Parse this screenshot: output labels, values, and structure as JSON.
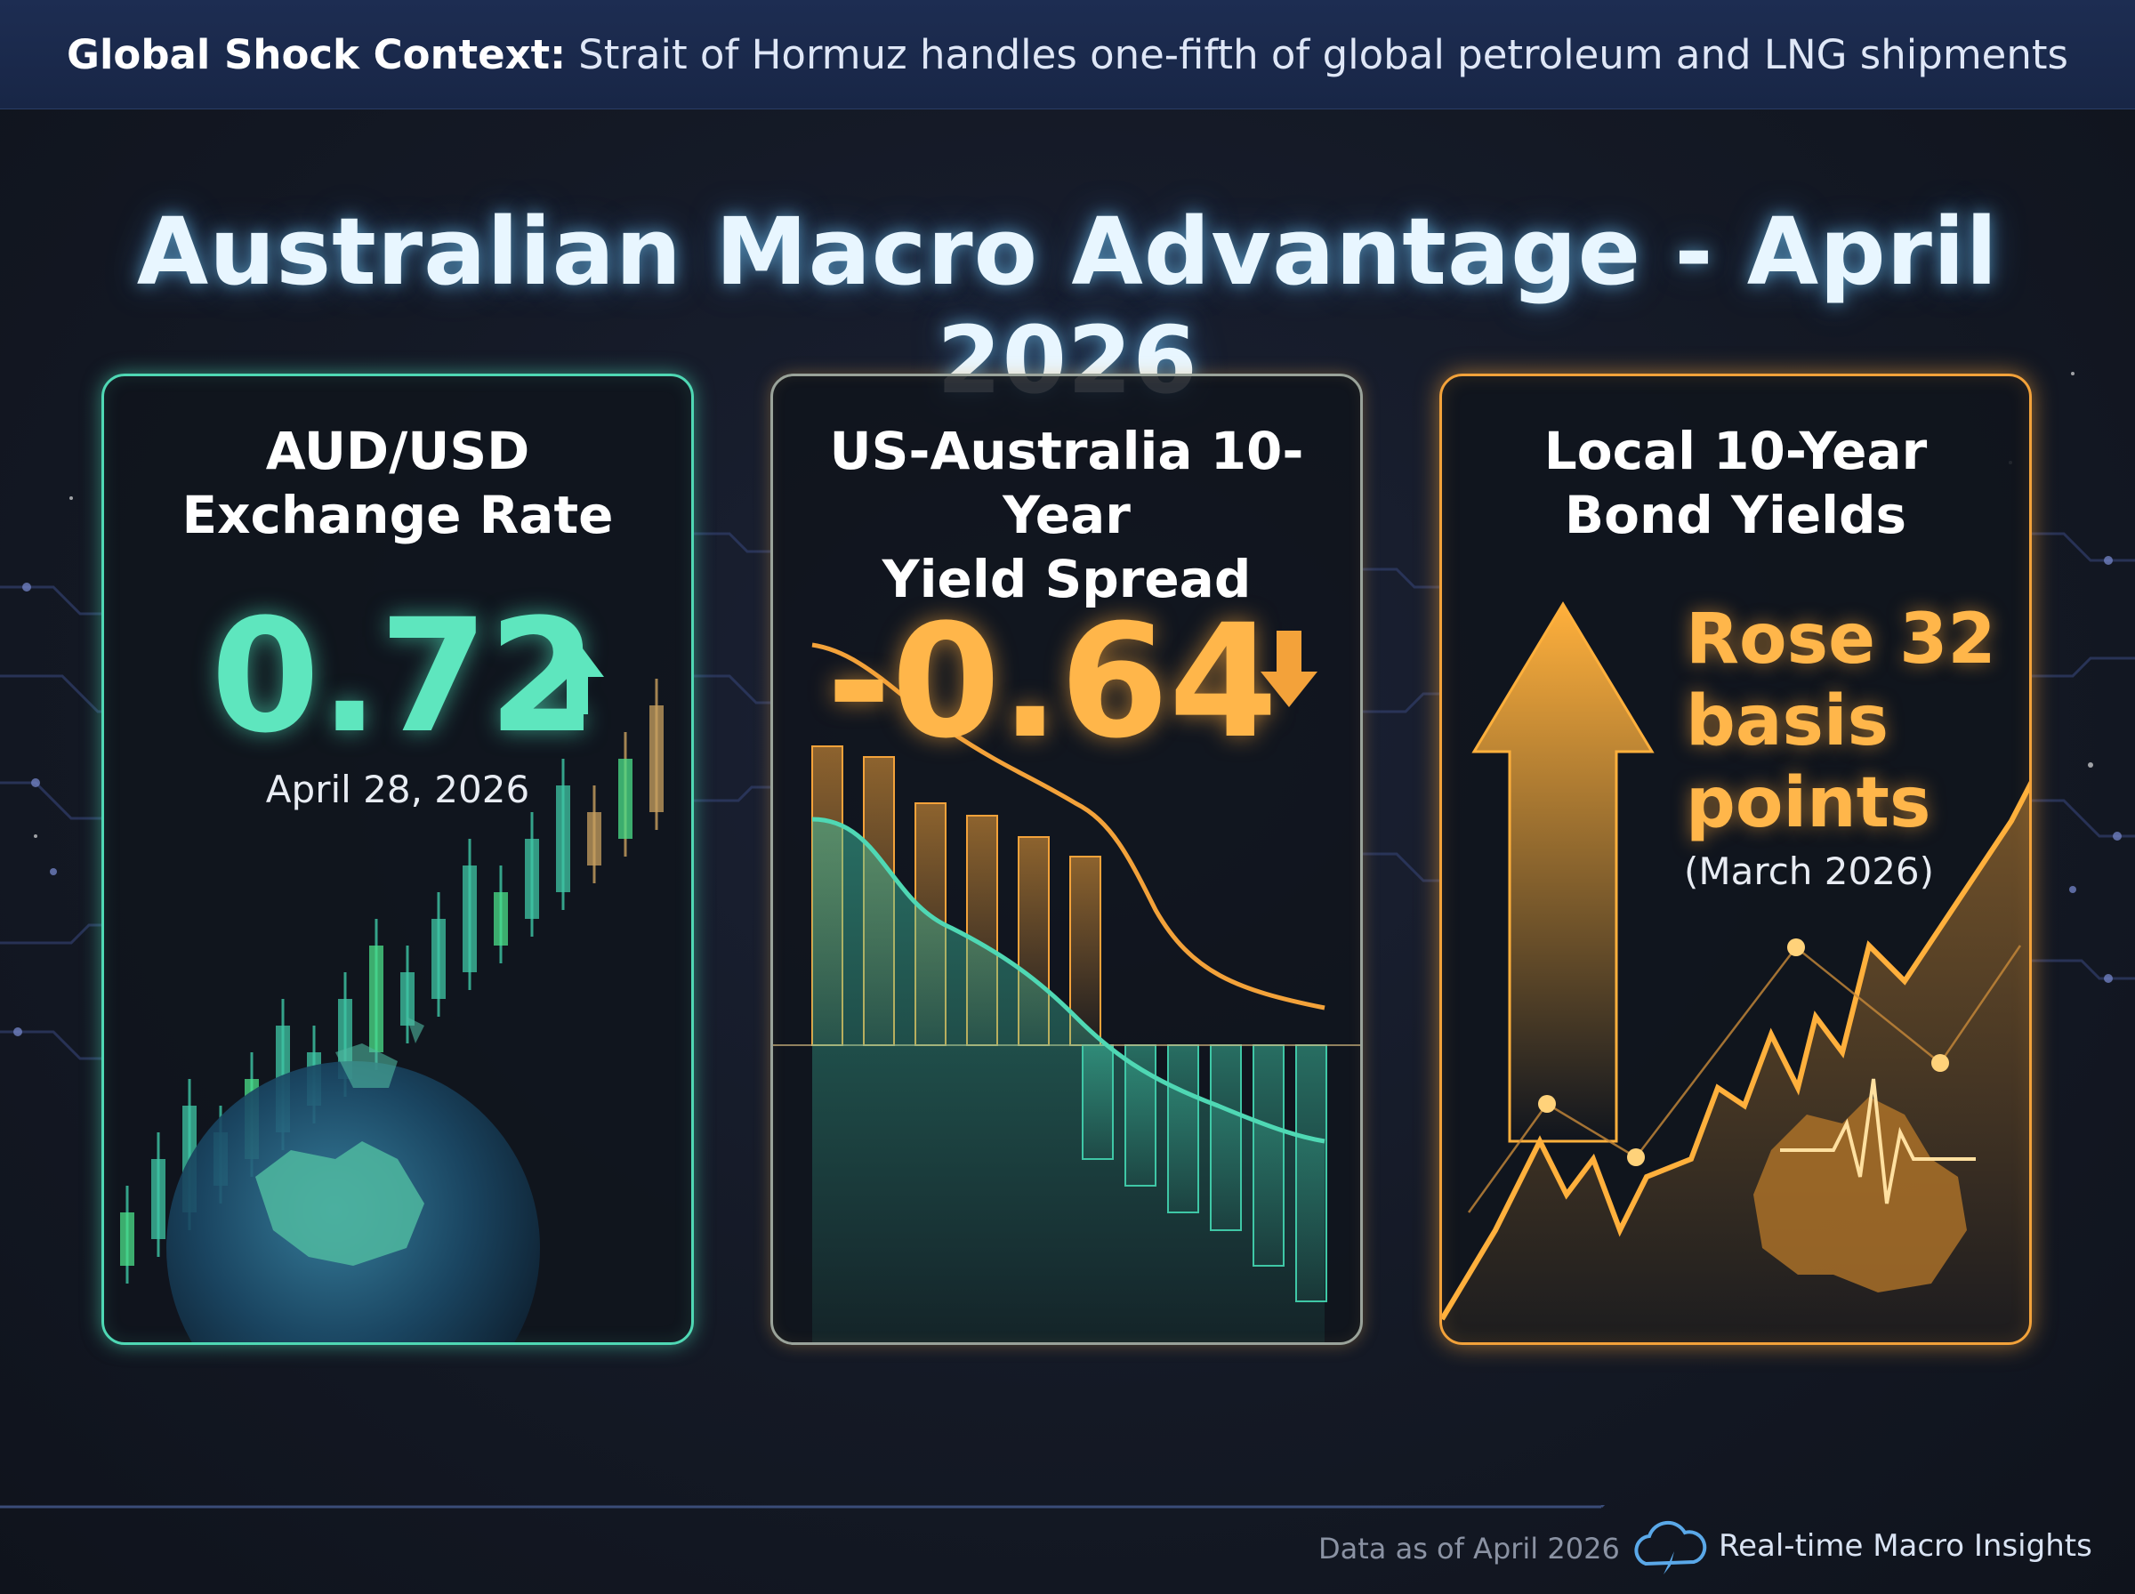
{
  "banner": {
    "label": "Global Shock Context:",
    "text": "Strait of Hormuz handles one-fifth of global petroleum and LNG shipments"
  },
  "title": "Australian Macro Advantage - April 2026",
  "cards": [
    {
      "title_line1": "AUD/USD",
      "title_line2": "Exchange Rate",
      "value": "0.72",
      "direction": "up",
      "date": "April 28, 2026",
      "accent": "#4fd8b4"
    },
    {
      "title_line1": "US-Australia 10-Year",
      "title_line2": "Yield Spread",
      "value": "-0.64",
      "direction": "down",
      "accent": "#f3a23a"
    },
    {
      "title_line1": "Local 10-Year",
      "title_line2": "Bond Yields",
      "value_line1": "Rose 32",
      "value_line2": "basis",
      "value_line3": "points",
      "date": "(March 2026)",
      "direction": "up",
      "accent": "#f3a23a"
    }
  ],
  "footer": {
    "data_note": "Data as of April 2026",
    "brand": "Real-time Macro Insights",
    "icon": "cloud-compass-icon"
  }
}
